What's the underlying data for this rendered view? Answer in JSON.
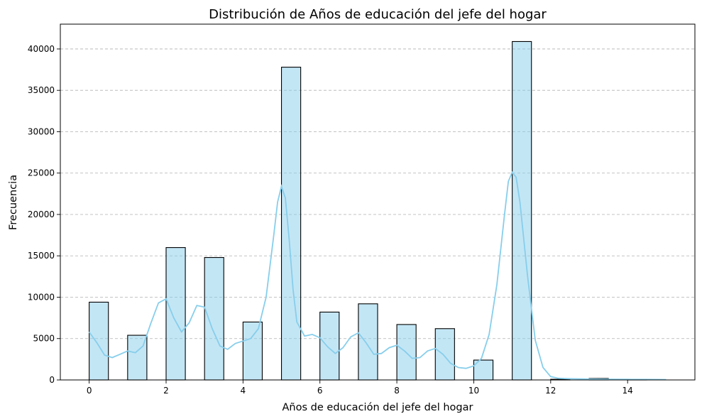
{
  "chart_data": {
    "type": "bar",
    "title": "Distribución de Años de educación del jefe del hogar",
    "xlabel": "Años de educación del jefe del hogar",
    "ylabel": "Frecuencia",
    "xlim": [
      -0.75,
      15.75
    ],
    "ylim": [
      0,
      43000
    ],
    "xticks": [
      0,
      2,
      4,
      6,
      8,
      10,
      12,
      14
    ],
    "yticks": [
      0,
      5000,
      10000,
      15000,
      20000,
      25000,
      30000,
      35000,
      40000
    ],
    "grid": "horizontal-dashed",
    "bar_color": "#87ceeb",
    "bins": [
      {
        "x0": 0,
        "x1": 0.5,
        "value": 9400
      },
      {
        "x0": 1,
        "x1": 1.5,
        "value": 5400
      },
      {
        "x0": 2,
        "x1": 2.5,
        "value": 16000
      },
      {
        "x0": 3,
        "x1": 3.5,
        "value": 14800
      },
      {
        "x0": 4,
        "x1": 4.5,
        "value": 7000
      },
      {
        "x0": 5,
        "x1": 5.5,
        "value": 37800
      },
      {
        "x0": 6,
        "x1": 6.5,
        "value": 8200
      },
      {
        "x0": 7,
        "x1": 7.5,
        "value": 9200
      },
      {
        "x0": 8,
        "x1": 8.5,
        "value": 6700
      },
      {
        "x0": 9,
        "x1": 9.5,
        "value": 6200
      },
      {
        "x0": 10,
        "x1": 10.5,
        "value": 2400
      },
      {
        "x0": 11,
        "x1": 11.5,
        "value": 40900
      },
      {
        "x0": 12,
        "x1": 12.5,
        "value": 80
      },
      {
        "x0": 13,
        "x1": 13.5,
        "value": 180
      },
      {
        "x0": 14,
        "x1": 14.5,
        "value": 30
      }
    ],
    "kde": {
      "x": [
        0,
        0.2,
        0.4,
        0.6,
        0.8,
        1.0,
        1.2,
        1.4,
        1.6,
        1.8,
        2.0,
        2.2,
        2.4,
        2.6,
        2.8,
        3.0,
        3.2,
        3.4,
        3.6,
        3.8,
        4.0,
        4.2,
        4.4,
        4.6,
        4.8,
        4.9,
        5.0,
        5.1,
        5.2,
        5.3,
        5.4,
        5.6,
        5.8,
        6.0,
        6.2,
        6.4,
        6.6,
        6.8,
        7.0,
        7.2,
        7.4,
        7.6,
        7.8,
        8.0,
        8.2,
        8.4,
        8.6,
        8.8,
        9.0,
        9.2,
        9.4,
        9.6,
        9.8,
        10.0,
        10.2,
        10.4,
        10.6,
        10.8,
        10.9,
        11.0,
        11.1,
        11.2,
        11.4,
        11.6,
        11.8,
        12.0,
        12.2,
        12.5,
        13.0,
        13.5,
        14.0,
        14.5,
        15.0
      ],
      "y": [
        5800,
        4500,
        3000,
        2700,
        3100,
        3500,
        3300,
        4100,
        6800,
        9300,
        9800,
        7500,
        5800,
        6900,
        9000,
        8800,
        6200,
        4100,
        3700,
        4400,
        4700,
        5000,
        6200,
        10000,
        17500,
        21500,
        23400,
        22000,
        17000,
        11000,
        7000,
        5300,
        5500,
        5100,
        4000,
        3200,
        3900,
        5200,
        5700,
        4500,
        3100,
        3200,
        3900,
        4200,
        3500,
        2600,
        2700,
        3500,
        3800,
        3100,
        2000,
        1500,
        1400,
        1700,
        2600,
        5500,
        11500,
        20000,
        24000,
        25100,
        24500,
        21500,
        12500,
        4800,
        1500,
        400,
        200,
        150,
        100,
        90,
        70,
        60,
        40
      ]
    }
  }
}
